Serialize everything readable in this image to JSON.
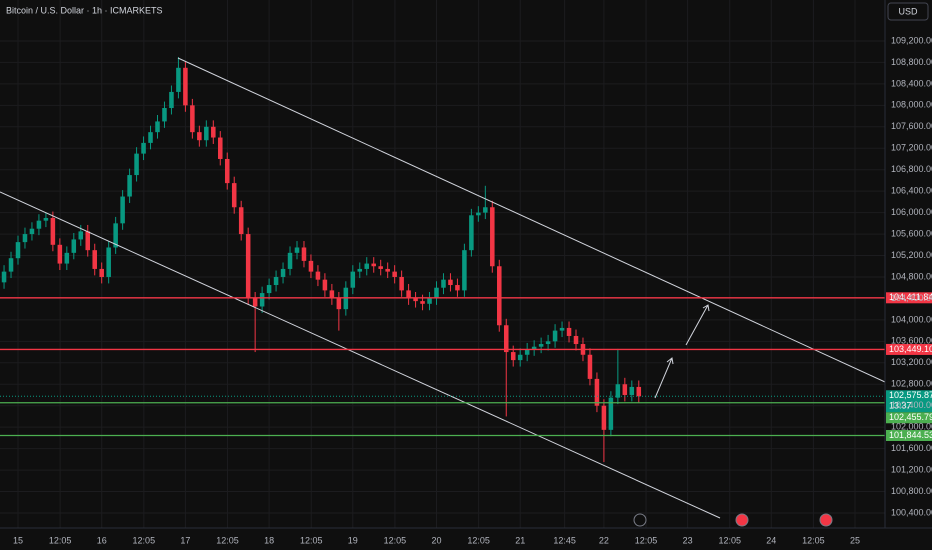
{
  "chart_data": {
    "type": "candlestick",
    "title": "Bitcoin / U.S. Dollar · 1h · ICMARKETS",
    "currency": "USD",
    "up_color": "#089981",
    "down_color": "#f23645",
    "grid": true,
    "x": [
      -4,
      -2,
      0,
      2,
      4,
      6,
      8,
      10,
      12,
      14,
      16,
      18,
      20,
      22,
      24,
      26,
      28,
      30,
      32,
      34,
      36,
      38,
      40,
      42,
      44,
      46,
      48,
      50,
      52,
      54,
      56,
      58,
      60,
      62,
      64,
      66,
      68,
      70,
      72,
      74,
      76,
      78,
      80,
      82,
      84,
      86,
      88,
      90,
      92,
      94,
      96,
      98,
      100,
      102,
      104,
      106,
      108,
      110,
      112,
      114,
      116,
      118,
      120,
      122,
      124,
      126,
      128,
      130,
      132,
      134,
      136,
      138,
      140,
      142,
      144,
      146,
      148,
      150,
      152,
      154,
      156,
      158,
      160,
      162,
      164,
      166,
      168,
      170,
      172,
      174,
      176,
      178
    ],
    "open": [
      104700,
      104900,
      105150,
      105450,
      105600,
      105700,
      105850,
      105900,
      105400,
      105050,
      105250,
      105500,
      105650,
      105300,
      104950,
      104800,
      105350,
      105800,
      106300,
      106700,
      107100,
      107300,
      107500,
      107700,
      107950,
      108250,
      108700,
      108000,
      107500,
      107350,
      107600,
      107400,
      107000,
      106550,
      106100,
      105600,
      104400,
      104250,
      104500,
      104650,
      104800,
      104950,
      105250,
      105350,
      105100,
      104900,
      104750,
      104550,
      104400,
      104200,
      104600,
      104900,
      104950,
      105050,
      105000,
      104950,
      104900,
      104800,
      104550,
      104400,
      104350,
      104300,
      104400,
      104600,
      104750,
      104650,
      104550,
      105300,
      105950,
      106000,
      106100,
      105000,
      103900,
      103400,
      103250,
      103350,
      103450,
      103500,
      103550,
      103600,
      103800,
      103850,
      103700,
      103550,
      103350,
      102900,
      102400,
      101950,
      102550,
      102800,
      102600,
      102750
    ],
    "high": [
      105020,
      105270,
      105570,
      105720,
      105820,
      105970,
      106000,
      106020,
      105520,
      105370,
      105620,
      105770,
      105770,
      105420,
      105070,
      105470,
      105920,
      106420,
      106820,
      107220,
      107420,
      107620,
      107820,
      108070,
      108370,
      108900,
      108820,
      108120,
      107620,
      107720,
      107720,
      107520,
      107120,
      106670,
      106220,
      105720,
      104520,
      104620,
      104770,
      104920,
      105070,
      105370,
      105470,
      105470,
      105220,
      105020,
      104870,
      104670,
      104520,
      104720,
      105020,
      105070,
      105170,
      105170,
      105120,
      105070,
      105020,
      104920,
      104670,
      104520,
      104470,
      104520,
      104720,
      104870,
      104870,
      104770,
      105420,
      106070,
      106120,
      106500,
      106220,
      105120,
      104020,
      103520,
      103470,
      103570,
      103620,
      103670,
      103720,
      103920,
      103970,
      103970,
      103820,
      103670,
      103470,
      103020,
      102520,
      102670,
      103460,
      102920,
      102870,
      102870
    ],
    "low": [
      104580,
      104780,
      105030,
      105330,
      105480,
      105580,
      105730,
      105280,
      104930,
      104930,
      105130,
      105380,
      105180,
      104830,
      104680,
      104680,
      105230,
      105680,
      106180,
      106580,
      106980,
      107180,
      107380,
      107580,
      107830,
      108130,
      107880,
      107380,
      107230,
      107230,
      107280,
      106880,
      106430,
      105980,
      105480,
      104280,
      103400,
      104130,
      104380,
      104530,
      104680,
      104830,
      105130,
      104980,
      104780,
      104630,
      104430,
      104280,
      103800,
      104080,
      104480,
      104780,
      104830,
      104880,
      104830,
      104780,
      104680,
      104430,
      104280,
      104230,
      104180,
      104180,
      104280,
      104480,
      104530,
      104430,
      104430,
      105180,
      105830,
      105880,
      104880,
      103780,
      102200,
      103130,
      103130,
      103230,
      103330,
      103380,
      103430,
      103480,
      103680,
      103580,
      103430,
      103230,
      102780,
      102280,
      101350,
      101830,
      102430,
      102480,
      102480,
      102456
    ],
    "close": [
      104900,
      105150,
      105450,
      105600,
      105700,
      105850,
      105900,
      105400,
      105050,
      105250,
      105500,
      105650,
      105300,
      104950,
      104800,
      105350,
      105800,
      106300,
      106700,
      107100,
      107300,
      107500,
      107700,
      107950,
      108250,
      108700,
      108000,
      107500,
      107350,
      107600,
      107400,
      107000,
      106550,
      106100,
      105600,
      104400,
      104250,
      104500,
      104650,
      104800,
      104950,
      105250,
      105350,
      105100,
      104900,
      104750,
      104550,
      104400,
      104200,
      104600,
      104900,
      104950,
      105050,
      105000,
      104950,
      104900,
      104800,
      104550,
      104400,
      104350,
      104300,
      104400,
      104600,
      104750,
      104650,
      104550,
      105300,
      105950,
      106000,
      106100,
      105000,
      103900,
      103400,
      103250,
      103350,
      103450,
      103500,
      103550,
      103600,
      103800,
      103850,
      103700,
      103550,
      103350,
      102900,
      102400,
      101950,
      102550,
      102800,
      102600,
      102750,
      102575.87
    ],
    "last_label": "102,575.87",
    "countdown": "13:37",
    "xlim": [
      -5.16,
      248.6
    ],
    "ylim": [
      100120,
      109964
    ],
    "xticks": [
      {
        "value": 0,
        "label": "15"
      },
      {
        "value": 12.08,
        "label": "12:05"
      },
      {
        "value": 24,
        "label": "16"
      },
      {
        "value": 36.08,
        "label": "12:05"
      },
      {
        "value": 48,
        "label": "17"
      },
      {
        "value": 60.08,
        "label": "12:05"
      },
      {
        "value": 72,
        "label": "18"
      },
      {
        "value": 84.08,
        "label": "12:05"
      },
      {
        "value": 96,
        "label": "19"
      },
      {
        "value": 108.08,
        "label": "12:05"
      },
      {
        "value": 120,
        "label": "20"
      },
      {
        "value": 132.08,
        "label": "12:05"
      },
      {
        "value": 144,
        "label": "21"
      },
      {
        "value": 156.75,
        "label": "12:45"
      },
      {
        "value": 168,
        "label": "22"
      },
      {
        "value": 180.08,
        "label": "12:05"
      },
      {
        "value": 192,
        "label": "23"
      },
      {
        "value": 204.08,
        "label": "12:05"
      },
      {
        "value": 216,
        "label": "24"
      },
      {
        "value": 228.08,
        "label": "12:05"
      },
      {
        "value": 240,
        "label": "25"
      }
    ],
    "yticks": [
      {
        "value": 100400,
        "label": "100,400.00"
      },
      {
        "value": 100800,
        "label": "100,800.00"
      },
      {
        "value": 101200,
        "label": "101,200.00"
      },
      {
        "value": 101600,
        "label": "101,600.00"
      },
      {
        "value": 102000,
        "label": "102,000.00"
      },
      {
        "value": 102400,
        "label": "102,400.00"
      },
      {
        "value": 102800,
        "label": "102,800.00"
      },
      {
        "value": 103200,
        "label": "103,200.00"
      },
      {
        "value": 103600,
        "label": "103,600.00"
      },
      {
        "value": 104000,
        "label": "104,000.00"
      },
      {
        "value": 104400,
        "label": "104,400.00"
      },
      {
        "value": 104800,
        "label": "104,800.00"
      },
      {
        "value": 105200,
        "label": "105,200.00"
      },
      {
        "value": 105600,
        "label": "105,600.00"
      },
      {
        "value": 106000,
        "label": "106,000.00"
      },
      {
        "value": 106400,
        "label": "106,400.00"
      },
      {
        "value": 106800,
        "label": "106,800.00"
      },
      {
        "value": 107200,
        "label": "107,200.00"
      },
      {
        "value": 107600,
        "label": "107,600.00"
      },
      {
        "value": 108000,
        "label": "108,000.00"
      },
      {
        "value": 108400,
        "label": "108,400.00"
      },
      {
        "value": 108800,
        "label": "108,800.00"
      },
      {
        "value": 109200,
        "label": "109,200.00"
      }
    ],
    "hlines": [
      {
        "value": 104411.84,
        "label": "104,411.84",
        "color": "#f23645"
      },
      {
        "value": 103449.1,
        "label": "103,449.10",
        "color": "#f23645"
      },
      {
        "value": 102455.79,
        "label": "102,455.79",
        "color": "#4caf50"
      },
      {
        "value": 101844.53,
        "label": "101,844.53",
        "color": "#4caf50"
      }
    ]
  }
}
